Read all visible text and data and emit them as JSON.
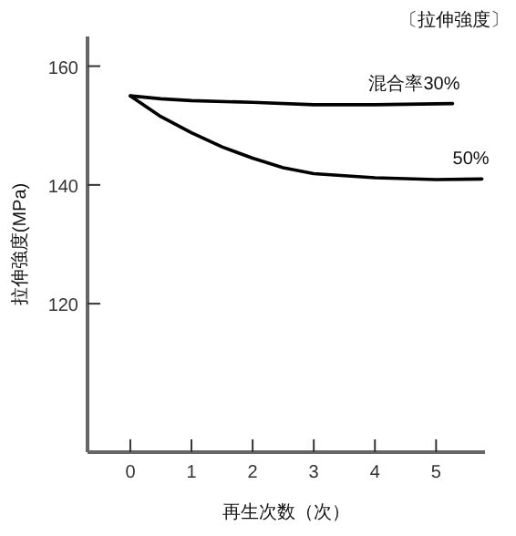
{
  "chart_data": {
    "type": "line",
    "title": "〔拉伸強度〕",
    "xlabel": "再生次数（次）",
    "ylabel": "拉伸強度(MPa)",
    "series": [
      {
        "name": "混合率30%",
        "color": "#000000",
        "x": [
          0,
          0.5,
          1,
          2,
          3,
          4,
          5.27
        ],
        "values": [
          155,
          154.5,
          154.2,
          153.9,
          153.5,
          153.5,
          153.7
        ]
      },
      {
        "name": "50%",
        "color": "#000000",
        "x": [
          0,
          0.5,
          1,
          1.5,
          2,
          2.5,
          3,
          4,
          5,
          5.75
        ],
        "values": [
          155,
          151.5,
          148.8,
          146.4,
          144.5,
          142.9,
          141.9,
          141.2,
          140.9,
          141
        ]
      }
    ],
    "xlim": [
      -0.7,
      5.8
    ],
    "ylim": [
      95,
      165
    ],
    "xticks": [
      0,
      1,
      2,
      3,
      4,
      5
    ],
    "yticks": [
      120,
      140,
      160
    ],
    "grid": false,
    "legend": false,
    "marker": "none",
    "line_style": "solid"
  }
}
